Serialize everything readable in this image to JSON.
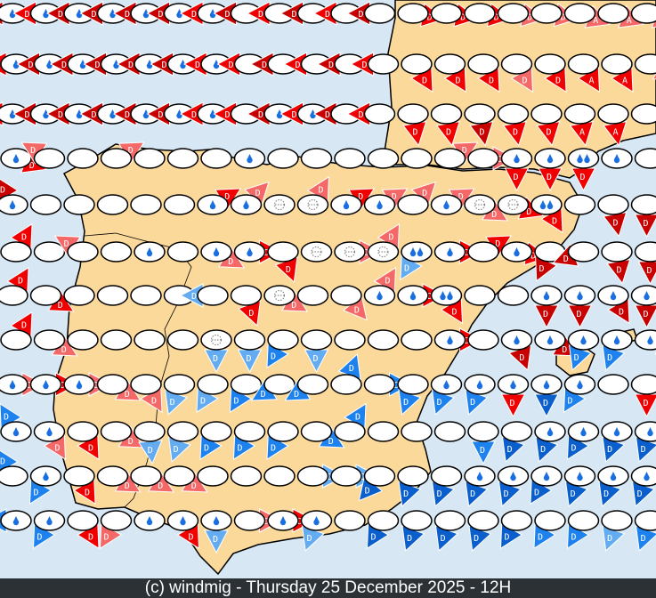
{
  "footer": {
    "text": "(c) windmig - Thursday 25 December 2025 - 12H"
  },
  "colors": {
    "sea": "#d7e7f3",
    "land": "#fbd99b",
    "dr": "#c80000",
    "r": "#f00000",
    "lr": "#f46868",
    "lb": "#64acf2",
    "b": "#1e82ee",
    "db": "#0a5fcc"
  },
  "icons": {
    "rain": "raindrop-icon",
    "showers": "double-raindrop-icon",
    "fog": "fog-icon",
    "none": "clear"
  },
  "stations": [
    [
      [
        "rain",
        "dr",
        270,
        "D"
      ],
      [
        "rain",
        "r",
        270,
        "D"
      ],
      [
        "rain",
        "dr",
        270,
        "D"
      ],
      [
        "rain",
        "dr",
        270,
        "D"
      ],
      [
        "rain",
        "dr",
        270,
        "D"
      ],
      [
        "rain",
        "dr",
        270,
        "D"
      ],
      [
        "rain",
        "r",
        270,
        "D"
      ],
      [
        "none",
        "dr",
        270,
        "D"
      ],
      [
        "none",
        "r",
        270,
        "D"
      ],
      [
        "none",
        "dr",
        270,
        "D"
      ],
      [
        "none",
        "r",
        270,
        "D"
      ],
      [
        "none",
        "dr",
        270,
        "D"
      ],
      [
        "none",
        "r",
        100,
        "D"
      ],
      [
        "none",
        "r",
        100,
        "D"
      ],
      [
        "none",
        "r",
        100,
        "D"
      ],
      [
        "none",
        "lr",
        100,
        "D"
      ],
      [
        "none",
        "lr",
        100,
        "D"
      ],
      [
        "none",
        "lr",
        110,
        "A"
      ],
      [
        "none",
        "lr",
        110,
        "A"
      ],
      [
        "none",
        "lr",
        110,
        "A"
      ]
    ],
    [
      [
        "rain",
        "r",
        270,
        "D"
      ],
      [
        "rain",
        "dr",
        270,
        "D"
      ],
      [
        "rain",
        "dr",
        270,
        "D"
      ],
      [
        "rain",
        "dr",
        270,
        "D"
      ],
      [
        "rain",
        "dr",
        270,
        "D"
      ],
      [
        "rain",
        "dr",
        270,
        "D"
      ],
      [
        "rain",
        "r",
        270,
        "D"
      ],
      [
        "none",
        "r",
        270,
        "D"
      ],
      [
        "none",
        "dr",
        270,
        "D"
      ],
      [
        "none",
        "r",
        270,
        "D"
      ],
      [
        "none",
        "dr",
        270,
        "D"
      ],
      [
        "none",
        "r",
        270,
        "D"
      ],
      [
        "none",
        "r",
        150,
        "D"
      ],
      [
        "none",
        "r",
        150,
        "D"
      ],
      [
        "none",
        "r",
        150,
        "D"
      ],
      [
        "none",
        "lr",
        150,
        "D"
      ],
      [
        "none",
        "r",
        150,
        "D"
      ],
      [
        "none",
        "r",
        150,
        "A"
      ],
      [
        "none",
        "r",
        150,
        "A"
      ],
      [
        "none",
        "lr",
        120,
        "A"
      ]
    ],
    [
      [
        "rain",
        "r",
        270,
        "D"
      ],
      [
        "rain",
        "dr",
        270,
        "D"
      ],
      [
        "rain",
        "dr",
        270,
        "D"
      ],
      [
        "rain",
        "dr",
        270,
        "D"
      ],
      [
        "rain",
        "dr",
        270,
        "D"
      ],
      [
        "rain",
        "dr",
        270,
        "D"
      ],
      [
        "rain",
        "r",
        270,
        "D"
      ],
      [
        "none",
        "r",
        270,
        "D"
      ],
      [
        "rain",
        "dr",
        270,
        "D"
      ],
      [
        "rain",
        "r",
        270,
        "D"
      ],
      [
        "none",
        "dr",
        270,
        "D"
      ],
      [
        "none",
        "r",
        270,
        "D"
      ],
      [
        "none",
        "r",
        170,
        "D"
      ],
      [
        "none",
        "r",
        170,
        "D"
      ],
      [
        "none",
        "dr",
        170,
        "D"
      ],
      [
        "none",
        "r",
        170,
        "D"
      ],
      [
        "none",
        "r",
        170,
        "D"
      ],
      [
        "none",
        "r",
        170,
        "A"
      ],
      [
        "none",
        "r",
        170,
        "A"
      ],
      [
        "none",
        "r",
        90,
        "A"
      ]
    ],
    [
      [
        "rain",
        "r",
        110,
        "D"
      ],
      [
        "none",
        "lr",
        300,
        "D"
      ],
      [
        "none",
        null,
        0,
        ""
      ],
      [
        "none",
        "lr",
        60,
        "D"
      ],
      [
        "none",
        null,
        0,
        ""
      ],
      [
        "none",
        null,
        0,
        ""
      ],
      [
        "none",
        null,
        0,
        ""
      ],
      [
        "rain",
        null,
        0,
        ""
      ],
      [
        "none",
        null,
        0,
        ""
      ],
      [
        "none",
        null,
        0,
        ""
      ],
      [
        "none",
        null,
        0,
        ""
      ],
      [
        "none",
        null,
        0,
        ""
      ],
      [
        "none",
        null,
        0,
        ""
      ],
      [
        "none",
        "lr",
        60,
        "D"
      ],
      [
        "none",
        "lr",
        90,
        "D"
      ],
      [
        "rain",
        "r",
        180,
        "D"
      ],
      [
        "rain",
        "r",
        180,
        "D"
      ],
      [
        "showers",
        "r",
        180,
        "D"
      ],
      [
        "rain",
        null,
        0,
        ""
      ],
      [
        "none",
        null,
        0,
        ""
      ]
    ],
    [
      [
        "rain",
        "dr",
        330,
        "D"
      ],
      [
        "none",
        null,
        0,
        ""
      ],
      [
        "none",
        null,
        0,
        ""
      ],
      [
        "none",
        null,
        0,
        ""
      ],
      [
        "none",
        null,
        0,
        ""
      ],
      [
        "none",
        null,
        0,
        ""
      ],
      [
        "rain",
        "r",
        60,
        "D"
      ],
      [
        "rain",
        "lr",
        45,
        "D"
      ],
      [
        "fog",
        null,
        0,
        ""
      ],
      [
        "fog",
        "lr",
        30,
        "D"
      ],
      [
        "rain",
        "r",
        60,
        "D"
      ],
      [
        "rain",
        "lr",
        60,
        "D"
      ],
      [
        "none",
        "lr",
        45,
        "D"
      ],
      [
        "rain",
        "lr",
        60,
        "D"
      ],
      [
        "fog",
        "lr",
        120,
        "D"
      ],
      [
        "fog",
        "r",
        110,
        "D"
      ],
      [
        "showers",
        "r",
        150,
        "D"
      ],
      [
        "none",
        null,
        0,
        ""
      ],
      [
        "none",
        "dr",
        170,
        "D"
      ],
      [
        "none",
        "dr",
        180,
        "D"
      ]
    ],
    [
      [
        "none",
        "r",
        30,
        "D"
      ],
      [
        "none",
        null,
        0,
        ""
      ],
      [
        "none",
        "lr",
        300,
        "D"
      ],
      [
        "none",
        null,
        0,
        ""
      ],
      [
        "rain",
        null,
        0,
        ""
      ],
      [
        "none",
        null,
        0,
        ""
      ],
      [
        "rain",
        "lr",
        120,
        "D"
      ],
      [
        "rain",
        "r",
        90,
        "D"
      ],
      [
        "none",
        "r",
        160,
        "D"
      ],
      [
        "fog",
        null,
        0,
        ""
      ],
      [
        "fog",
        "lr",
        90,
        "D"
      ],
      [
        "fog",
        "lr",
        30,
        "D"
      ],
      [
        "showers",
        "lb",
        210,
        "D"
      ],
      [
        "rain",
        "r",
        90,
        "D"
      ],
      [
        "none",
        "r",
        60,
        "D"
      ],
      [
        "rain",
        "r",
        100,
        "D"
      ],
      [
        "none",
        "dr",
        240,
        "D"
      ],
      [
        "none",
        "dr",
        250,
        "D"
      ],
      [
        "none",
        "dr",
        170,
        "D"
      ],
      [
        "none",
        "dr",
        180,
        "D"
      ]
    ],
    [
      [
        "none",
        "r",
        30,
        "D"
      ],
      [
        "none",
        "r",
        120,
        "D"
      ],
      [
        "none",
        null,
        0,
        ""
      ],
      [
        "none",
        null,
        0,
        ""
      ],
      [
        "none",
        null,
        0,
        ""
      ],
      [
        "none",
        null,
        0,
        ""
      ],
      [
        "none",
        "lb",
        270,
        "D"
      ],
      [
        "none",
        "r",
        160,
        "D"
      ],
      [
        "fog",
        "lr",
        120,
        "D"
      ],
      [
        "none",
        null,
        0,
        ""
      ],
      [
        "none",
        "lr",
        140,
        "D"
      ],
      [
        "rain",
        "lr",
        30,
        "D"
      ],
      [
        "rain",
        "r",
        90,
        "D"
      ],
      [
        "showers",
        "r",
        150,
        "D"
      ],
      [
        "none",
        null,
        0,
        ""
      ],
      [
        "none",
        null,
        0,
        ""
      ],
      [
        "rain",
        "dr",
        180,
        "D"
      ],
      [
        "rain",
        "dr",
        180,
        "D"
      ],
      [
        "rain",
        "dr",
        150,
        "D"
      ],
      [
        "rain",
        "dr",
        180,
        "D"
      ]
    ],
    [
      [
        "none",
        "r",
        30,
        "D"
      ],
      [
        "none",
        "lr",
        120,
        "D"
      ],
      [
        "none",
        null,
        0,
        ""
      ],
      [
        "none",
        null,
        0,
        ""
      ],
      [
        "none",
        null,
        0,
        ""
      ],
      [
        "none",
        null,
        0,
        ""
      ],
      [
        "fog",
        "lb",
        180,
        "D"
      ],
      [
        "none",
        "lb",
        180,
        "D"
      ],
      [
        "none",
        "b",
        210,
        "D"
      ],
      [
        "none",
        "lb",
        180,
        "D"
      ],
      [
        "none",
        null,
        0,
        ""
      ],
      [
        "none",
        null,
        0,
        ""
      ],
      [
        "none",
        null,
        0,
        ""
      ],
      [
        "rain",
        "r",
        90,
        "D"
      ],
      [
        "none",
        null,
        0,
        ""
      ],
      [
        "rain",
        "dr",
        160,
        "D"
      ],
      [
        "rain",
        "dr",
        120,
        "D"
      ],
      [
        "rain",
        "b",
        200,
        "D"
      ],
      [
        "rain",
        "b",
        200,
        "D"
      ],
      [
        "rain",
        "dr",
        110,
        "D"
      ]
    ],
    [
      [
        "rain",
        "lr",
        90,
        "D"
      ],
      [
        "rain",
        "r",
        90,
        "D"
      ],
      [
        "rain",
        "lr",
        90,
        "D"
      ],
      [
        "none",
        "lr",
        120,
        "D"
      ],
      [
        "none",
        "lr",
        150,
        "D"
      ],
      [
        "none",
        "lb",
        200,
        "D"
      ],
      [
        "none",
        "lb",
        210,
        "D"
      ],
      [
        "none",
        "b",
        210,
        "D"
      ],
      [
        "none",
        "b",
        240,
        "D"
      ],
      [
        "none",
        "b",
        240,
        "D"
      ],
      [
        "none",
        "b",
        20,
        "D"
      ],
      [
        "none",
        "b",
        90,
        "D"
      ],
      [
        "none",
        "b",
        200,
        "D"
      ],
      [
        "rain",
        "b",
        200,
        "D"
      ],
      [
        "rain",
        "b",
        200,
        "D"
      ],
      [
        "rain",
        "r",
        180,
        "D"
      ],
      [
        "rain",
        "db",
        180,
        "D"
      ],
      [
        "rain",
        "b",
        210,
        "D"
      ],
      [
        "none",
        null,
        0,
        ""
      ],
      [
        "none",
        "r",
        180,
        "D"
      ]
    ],
    [
      [
        "rain",
        "b",
        330,
        "D"
      ],
      [
        "rain",
        "lr",
        150,
        "D"
      ],
      [
        "none",
        "r",
        150,
        "D"
      ],
      [
        "none",
        "lr",
        120,
        "D"
      ],
      [
        "none",
        "lb",
        210,
        "D"
      ],
      [
        "none",
        "lb",
        200,
        "D"
      ],
      [
        "none",
        "b",
        210,
        "D"
      ],
      [
        "none",
        "b",
        210,
        "D"
      ],
      [
        "none",
        "b",
        210,
        "D"
      ],
      [
        "none",
        "b",
        120,
        "D"
      ],
      [
        "none",
        "b",
        30,
        "D"
      ],
      [
        "none",
        null,
        0,
        ""
      ],
      [
        "none",
        null,
        0,
        ""
      ],
      [
        "none",
        null,
        0,
        ""
      ],
      [
        "none",
        "b",
        180,
        "D"
      ],
      [
        "none",
        "db",
        200,
        "D"
      ],
      [
        "rain",
        "db",
        200,
        "D"
      ],
      [
        "rain",
        "db",
        210,
        "D"
      ],
      [
        "rain",
        "db",
        200,
        "D"
      ],
      [
        "rain",
        "db",
        200,
        "D"
      ]
    ],
    [
      [
        "none",
        "b",
        330,
        "D"
      ],
      [
        "rain",
        "b",
        210,
        "D"
      ],
      [
        "none",
        "r",
        150,
        "D"
      ],
      [
        "none",
        "lr",
        120,
        "D"
      ],
      [
        "none",
        "lr",
        120,
        "D"
      ],
      [
        "none",
        "lr",
        120,
        "D"
      ],
      [
        "none",
        null,
        0,
        ""
      ],
      [
        "none",
        null,
        0,
        ""
      ],
      [
        "none",
        null,
        0,
        ""
      ],
      [
        "none",
        "lb",
        90,
        "D"
      ],
      [
        "none",
        "lb",
        90,
        "D"
      ],
      [
        "none",
        "db",
        220,
        "D"
      ],
      [
        "none",
        "db",
        200,
        "D"
      ],
      [
        "none",
        "db",
        200,
        "D"
      ],
      [
        "rain",
        "db",
        200,
        "D"
      ],
      [
        "rain",
        "db",
        200,
        "D"
      ],
      [
        "rain",
        "db",
        210,
        "D"
      ],
      [
        "rain",
        "db",
        200,
        "D"
      ],
      [
        "rain",
        "db",
        200,
        "D"
      ],
      [
        "rain",
        "db",
        200,
        "D"
      ]
    ],
    [
      [
        "rain",
        "b",
        270,
        "D"
      ],
      [
        "rain",
        "b",
        210,
        "D"
      ],
      [
        "none",
        "r",
        150,
        "D"
      ],
      [
        "none",
        "lr",
        210,
        "D"
      ],
      [
        "rain",
        null,
        0,
        ""
      ],
      [
        "rain",
        "r",
        150,
        "D"
      ],
      [
        "rain",
        "lb",
        180,
        "D"
      ],
      [
        "none",
        "lr",
        90,
        "D"
      ],
      [
        "rain",
        "r",
        90,
        "D"
      ],
      [
        "rain",
        "lb",
        200,
        "D"
      ],
      [
        "none",
        null,
        0,
        ""
      ],
      [
        "none",
        "db",
        210,
        "D"
      ],
      [
        "none",
        "db",
        200,
        "D"
      ],
      [
        "none",
        "db",
        200,
        "D"
      ],
      [
        "none",
        "db",
        200,
        "D"
      ],
      [
        "none",
        "db",
        210,
        "D"
      ],
      [
        "none",
        "b",
        210,
        "D"
      ],
      [
        "none",
        "b",
        210,
        "D"
      ],
      [
        "none",
        "lb",
        200,
        "D"
      ],
      [
        "none",
        "b",
        200,
        "D"
      ]
    ]
  ]
}
